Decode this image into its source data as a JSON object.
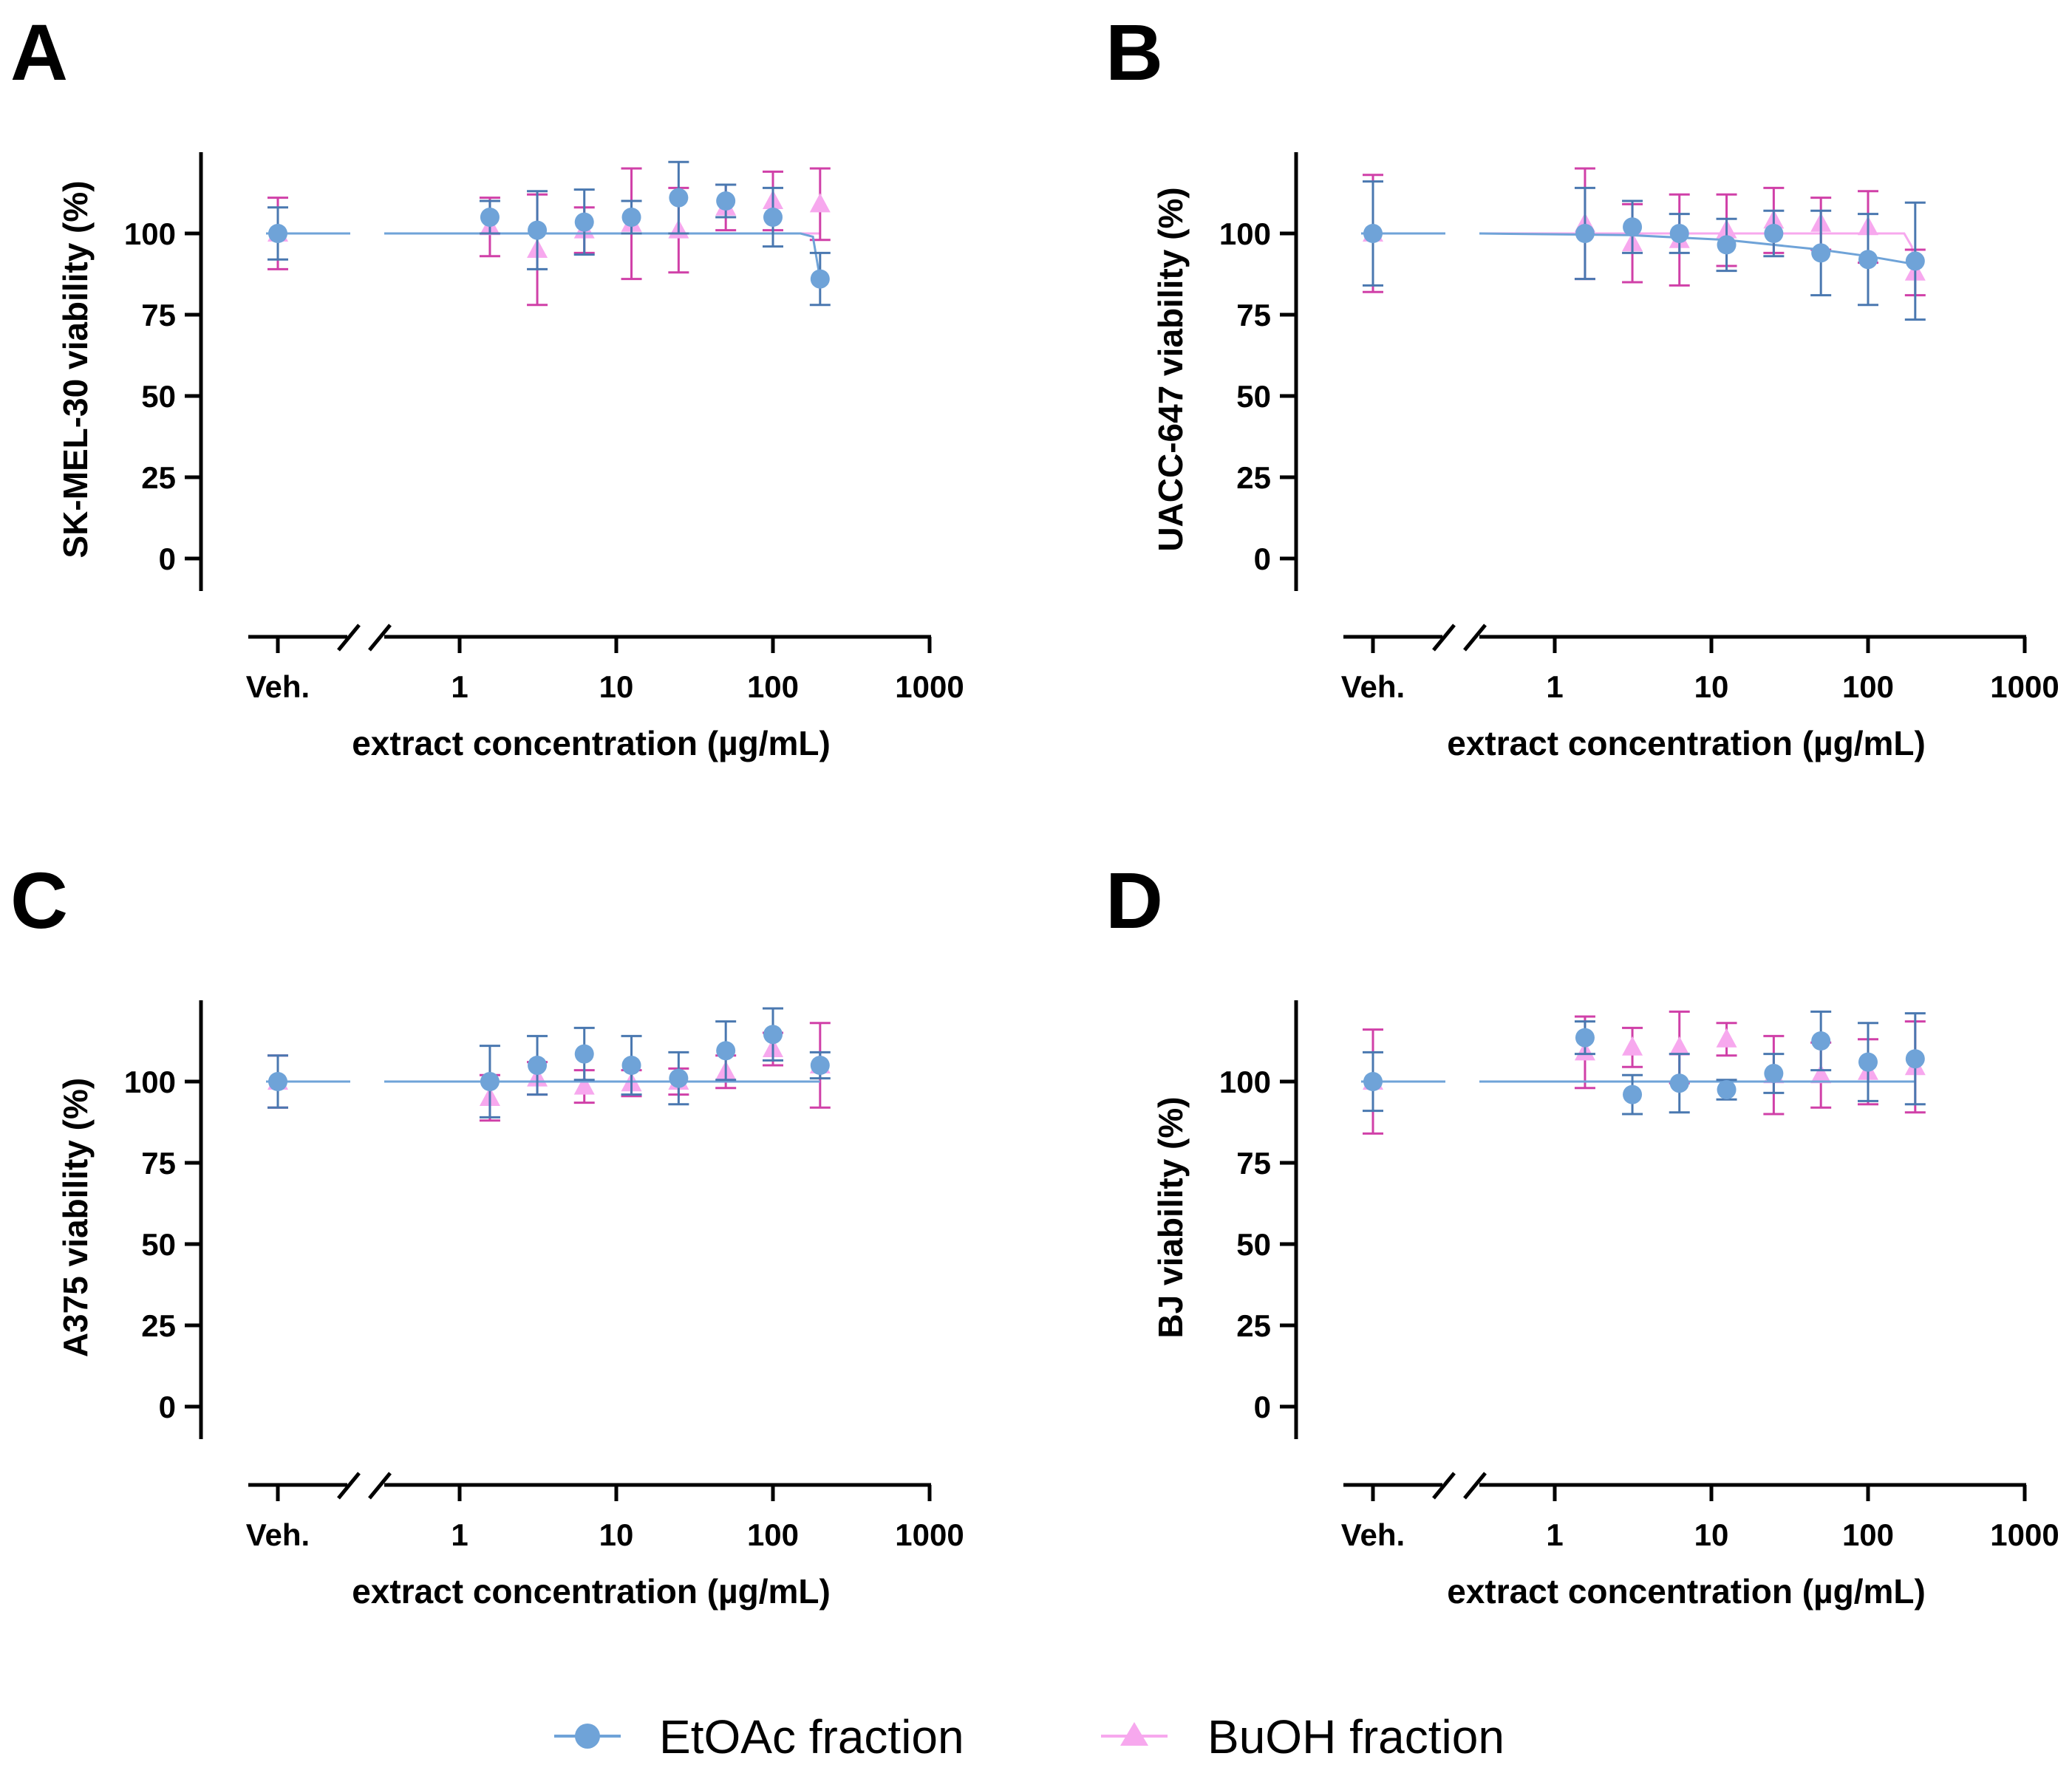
{
  "colors": {
    "etoac_marker": "#6fa3d8",
    "etoac_line": "#6fa3d8",
    "etoac_err": "#4a78b0",
    "buoh_marker": "#f7a8ee",
    "buoh_line": "#f7a8ee",
    "buoh_err": "#d040a8"
  },
  "legend": {
    "etoac": "EtOAc fraction",
    "buoh": "BuOH fraction"
  },
  "chart_data": [
    {
      "panel": "A",
      "type": "scatter",
      "ylabel": "SK-MEL-30 viability (%)",
      "xlabel": "extract concentration (µg/mL)",
      "vehicle_label": "Veh.",
      "xscale": "log",
      "xlim": [
        0.3,
        1000
      ],
      "x_ticks": [
        "1",
        "10",
        "100",
        "1000"
      ],
      "ylim": [
        -10,
        125
      ],
      "y_ticks": [
        "0",
        "25",
        "50",
        "75",
        "100"
      ],
      "series": [
        {
          "name": "EtOAc fraction",
          "veh": {
            "y": 100,
            "err": 8
          },
          "x": [
            1.56,
            3.13,
            6.25,
            12.5,
            25,
            50,
            100,
            200
          ],
          "y": [
            105,
            101,
            103.5,
            105,
            111,
            110,
            105,
            86
          ],
          "err": [
            5,
            12,
            10,
            5,
            11,
            5,
            9,
            8
          ],
          "fit": [
            [
              0.3,
              100
            ],
            [
              150,
              100
            ],
            [
              180,
              99
            ],
            [
              200,
              86
            ]
          ]
        },
        {
          "name": "BuOH fraction",
          "veh": {
            "y": 100,
            "err": 11
          },
          "x": [
            1.56,
            3.13,
            6.25,
            12.5,
            25,
            50,
            100,
            200
          ],
          "y": [
            102,
            95,
            101,
            103,
            101,
            108,
            110,
            109
          ],
          "err": [
            9,
            17,
            7,
            17,
            13,
            7,
            9,
            11
          ],
          "fit": [
            [
              0.3,
              100
            ],
            [
              200,
              100
            ]
          ]
        }
      ]
    },
    {
      "panel": "B",
      "type": "scatter",
      "ylabel": "UACC-647 viability (%)",
      "xlabel": "extract concentration (µg/mL)",
      "vehicle_label": "Veh.",
      "xscale": "log",
      "xlim": [
        0.3,
        1000
      ],
      "x_ticks": [
        "1",
        "10",
        "100",
        "1000"
      ],
      "ylim": [
        -10,
        125
      ],
      "y_ticks": [
        "0",
        "25",
        "50",
        "75",
        "100"
      ],
      "series": [
        {
          "name": "EtOAc fraction",
          "veh": {
            "y": 100,
            "err": 16
          },
          "x": [
            1.56,
            3.13,
            6.25,
            12.5,
            25,
            50,
            100,
            200
          ],
          "y": [
            100,
            102,
            100,
            96.5,
            100,
            94,
            92,
            91.5
          ],
          "err": [
            14,
            8,
            6,
            8,
            7,
            13,
            14,
            18
          ],
          "fit": [
            [
              0.3,
              100
            ],
            [
              3,
              99.5
            ],
            [
              12.5,
              98
            ],
            [
              50,
              95
            ],
            [
              100,
              93
            ],
            [
              200,
              90.5
            ]
          ]
        },
        {
          "name": "BuOH fraction",
          "veh": {
            "y": 100,
            "err": 18
          },
          "x": [
            1.56,
            3.13,
            6.25,
            12.5,
            25,
            50,
            100,
            200
          ],
          "y": [
            103,
            97,
            98,
            101,
            104,
            103,
            102,
            88
          ],
          "err": [
            17,
            12,
            14,
            11,
            10,
            8,
            11,
            7
          ],
          "fit": [
            [
              0.3,
              100
            ],
            [
              170,
              100
            ],
            [
              190,
              96
            ],
            [
              200,
              88
            ]
          ]
        }
      ]
    },
    {
      "panel": "C",
      "type": "scatter",
      "ylabel": "A375 viability (%)",
      "xlabel": "extract concentration (µg/mL)",
      "vehicle_label": "Veh.",
      "xscale": "log",
      "xlim": [
        0.3,
        1000
      ],
      "x_ticks": [
        "1",
        "10",
        "100",
        "1000"
      ],
      "ylim": [
        -10,
        125
      ],
      "y_ticks": [
        "0",
        "25",
        "50",
        "75",
        "100"
      ],
      "series": [
        {
          "name": "EtOAc fraction",
          "veh": {
            "y": 100,
            "err": 8
          },
          "x": [
            1.56,
            3.13,
            6.25,
            12.5,
            25,
            50,
            100,
            200
          ],
          "y": [
            100,
            105,
            108.5,
            105,
            101,
            109.5,
            114.5,
            105
          ],
          "err": [
            11,
            9,
            8,
            9,
            8,
            9,
            8,
            4
          ],
          "fit": [
            [
              0.3,
              100
            ],
            [
              200,
              100
            ]
          ]
        },
        {
          "name": "BuOH fraction",
          "veh": {
            "y": 100,
            "err": 8
          },
          "x": [
            1.56,
            3.13,
            6.25,
            12.5,
            25,
            50,
            100,
            200
          ],
          "y": [
            95,
            101,
            98.5,
            99.5,
            100,
            103,
            110,
            105
          ],
          "err": [
            7,
            5,
            5,
            4,
            4,
            5,
            5,
            13
          ],
          "fit": [
            [
              0.3,
              100
            ],
            [
              200,
              100
            ]
          ]
        }
      ]
    },
    {
      "panel": "D",
      "type": "scatter",
      "ylabel": "BJ viability (%)",
      "xlabel": "extract concentration (µg/mL)",
      "vehicle_label": "Veh.",
      "xscale": "log",
      "xlim": [
        0.3,
        1000
      ],
      "x_ticks": [
        "1",
        "10",
        "100",
        "1000"
      ],
      "ylim": [
        -10,
        125
      ],
      "y_ticks": [
        "0",
        "25",
        "50",
        "75",
        "100"
      ],
      "series": [
        {
          "name": "EtOAc fraction",
          "veh": {
            "y": 100,
            "err": 9
          },
          "x": [
            1.56,
            3.13,
            6.25,
            12.5,
            25,
            50,
            100,
            200
          ],
          "y": [
            113.5,
            96,
            99.5,
            97.5,
            102.5,
            112.5,
            106,
            107
          ],
          "err": [
            5,
            6,
            9,
            3,
            6,
            9,
            12,
            14
          ],
          "fit": [
            [
              0.3,
              100
            ],
            [
              200,
              100
            ]
          ]
        },
        {
          "name": "BuOH fraction",
          "veh": {
            "y": 100,
            "err": 16
          },
          "x": [
            1.56,
            3.13,
            6.25,
            12.5,
            25,
            50,
            100,
            200
          ],
          "y": [
            109,
            110.5,
            110.5,
            113,
            102,
            102,
            103,
            104.5
          ],
          "err": [
            11,
            6,
            11,
            5,
            12,
            10,
            10,
            14
          ],
          "fit": [
            [
              0.3,
              100
            ],
            [
              200,
              100
            ]
          ]
        }
      ]
    }
  ]
}
